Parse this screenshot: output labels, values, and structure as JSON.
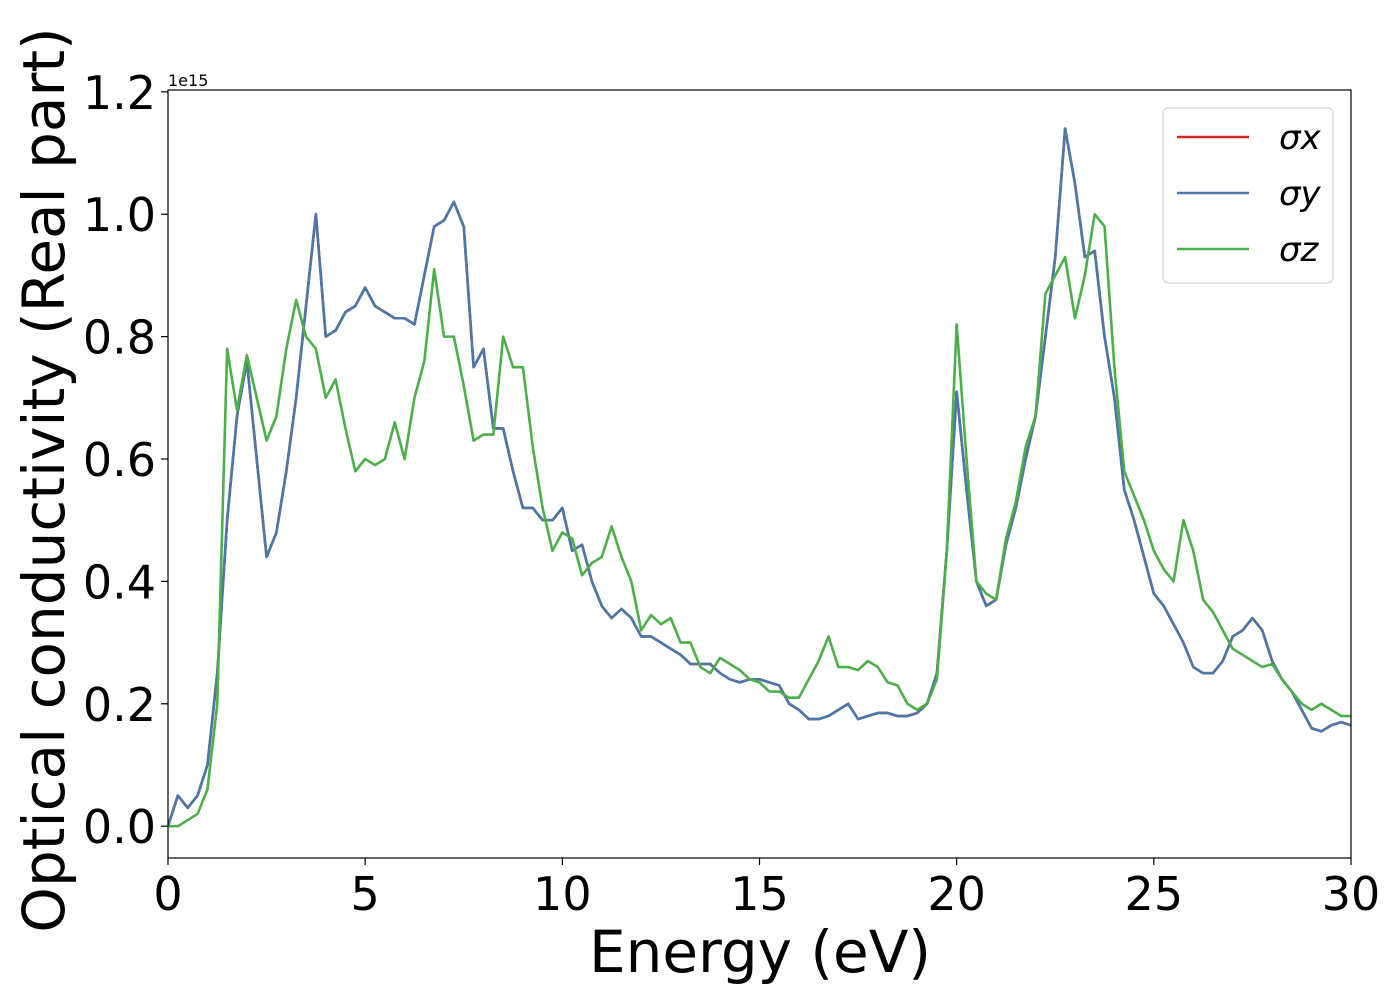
{
  "chart_data": {
    "type": "line",
    "xlabel": "Energy (eV)",
    "ylabel": "Optical conductivity (Real part)",
    "y_offset_text": "1e15",
    "xlim": [
      0,
      30
    ],
    "ylim": [
      -0.052,
      1.203
    ],
    "xticks": [
      0,
      5,
      10,
      15,
      20,
      25,
      30
    ],
    "yticks": [
      {
        "value": 0,
        "label": "0.0"
      },
      0.2,
      0.4,
      0.6,
      0.8,
      {
        "value": 1,
        "label": "1.0"
      },
      1.2
    ],
    "legend": "upper right",
    "x": [
      0,
      0.25,
      0.5,
      0.75,
      1,
      1.25,
      1.5,
      1.75,
      2,
      2.25,
      2.5,
      2.75,
      3,
      3.25,
      3.5,
      3.75,
      4,
      4.25,
      4.5,
      4.75,
      5,
      5.25,
      5.5,
      5.75,
      6,
      6.25,
      6.5,
      6.75,
      7,
      7.25,
      7.5,
      7.75,
      8,
      8.25,
      8.5,
      8.75,
      9,
      9.25,
      9.5,
      9.75,
      10,
      10.25,
      10.5,
      10.75,
      11,
      11.25,
      11.5,
      11.75,
      12,
      12.25,
      12.5,
      12.75,
      13,
      13.25,
      13.5,
      13.75,
      14,
      14.25,
      14.5,
      14.75,
      15,
      15.25,
      15.5,
      15.75,
      16,
      16.25,
      16.5,
      16.75,
      17,
      17.25,
      17.5,
      17.75,
      18,
      18.25,
      18.5,
      18.75,
      19,
      19.25,
      19.5,
      19.75,
      20,
      20.25,
      20.5,
      20.75,
      21,
      21.25,
      21.5,
      21.75,
      22,
      22.25,
      22.5,
      22.75,
      23,
      23.25,
      23.5,
      23.75,
      24,
      24.25,
      24.5,
      24.75,
      25,
      25.25,
      25.5,
      25.75,
      26,
      26.25,
      26.5,
      26.75,
      27,
      27.25,
      27.5,
      27.75,
      28,
      28.25,
      28.5,
      28.75,
      29,
      29.25,
      29.5,
      29.75,
      30
    ],
    "series": [
      {
        "name": "σx",
        "color": "#d62728",
        "values": [
          0,
          0.05,
          0.03,
          0.05,
          0.1,
          0.25,
          0.5,
          0.67,
          0.76,
          0.6,
          0.44,
          0.48,
          0.58,
          0.7,
          0.85,
          1.0,
          0.8,
          0.81,
          0.84,
          0.85,
          0.88,
          0.85,
          0.84,
          0.83,
          0.83,
          0.82,
          0.9,
          0.98,
          0.99,
          1.02,
          0.98,
          0.75,
          0.78,
          0.65,
          0.65,
          0.58,
          0.52,
          0.52,
          0.5,
          0.5,
          0.52,
          0.45,
          0.46,
          0.4,
          0.36,
          0.34,
          0.355,
          0.34,
          0.31,
          0.31,
          0.3,
          0.29,
          0.28,
          0.265,
          0.265,
          0.265,
          0.25,
          0.24,
          0.235,
          0.24,
          0.24,
          0.235,
          0.23,
          0.2,
          0.19,
          0.175,
          0.175,
          0.18,
          0.19,
          0.2,
          0.175,
          0.18,
          0.185,
          0.185,
          0.18,
          0.18,
          0.185,
          0.2,
          0.25,
          0.45,
          0.71,
          0.55,
          0.4,
          0.36,
          0.37,
          0.46,
          0.52,
          0.6,
          0.67,
          0.8,
          0.93,
          1.14,
          1.05,
          0.93,
          0.94,
          0.8,
          0.7,
          0.55,
          0.5,
          0.44,
          0.38,
          0.36,
          0.33,
          0.3,
          0.26,
          0.25,
          0.25,
          0.27,
          0.31,
          0.32,
          0.34,
          0.32,
          0.27,
          0.24,
          0.22,
          0.19,
          0.16,
          0.155,
          0.165,
          0.17,
          0.165
        ]
      },
      {
        "name": "σy",
        "color": "#4a78a8",
        "values": [
          0,
          0.05,
          0.03,
          0.05,
          0.1,
          0.25,
          0.5,
          0.67,
          0.76,
          0.6,
          0.44,
          0.48,
          0.58,
          0.7,
          0.85,
          1.0,
          0.8,
          0.81,
          0.84,
          0.85,
          0.88,
          0.85,
          0.84,
          0.83,
          0.83,
          0.82,
          0.9,
          0.98,
          0.99,
          1.02,
          0.98,
          0.75,
          0.78,
          0.65,
          0.65,
          0.58,
          0.52,
          0.52,
          0.5,
          0.5,
          0.52,
          0.45,
          0.46,
          0.4,
          0.36,
          0.34,
          0.355,
          0.34,
          0.31,
          0.31,
          0.3,
          0.29,
          0.28,
          0.265,
          0.265,
          0.265,
          0.25,
          0.24,
          0.235,
          0.24,
          0.24,
          0.235,
          0.23,
          0.2,
          0.19,
          0.175,
          0.175,
          0.18,
          0.19,
          0.2,
          0.175,
          0.18,
          0.185,
          0.185,
          0.18,
          0.18,
          0.185,
          0.2,
          0.25,
          0.45,
          0.71,
          0.55,
          0.4,
          0.36,
          0.37,
          0.46,
          0.52,
          0.6,
          0.67,
          0.8,
          0.93,
          1.14,
          1.05,
          0.93,
          0.94,
          0.8,
          0.7,
          0.55,
          0.5,
          0.44,
          0.38,
          0.36,
          0.33,
          0.3,
          0.26,
          0.25,
          0.25,
          0.27,
          0.31,
          0.32,
          0.34,
          0.32,
          0.27,
          0.24,
          0.22,
          0.19,
          0.16,
          0.155,
          0.165,
          0.17,
          0.165
        ]
      },
      {
        "name": "σz",
        "color": "#4daf4a",
        "values": [
          0,
          0,
          0.01,
          0.02,
          0.06,
          0.2,
          0.78,
          0.68,
          0.77,
          0.7,
          0.63,
          0.67,
          0.78,
          0.86,
          0.8,
          0.78,
          0.7,
          0.73,
          0.65,
          0.58,
          0.6,
          0.59,
          0.6,
          0.66,
          0.6,
          0.7,
          0.76,
          0.91,
          0.8,
          0.8,
          0.72,
          0.63,
          0.64,
          0.64,
          0.8,
          0.75,
          0.75,
          0.62,
          0.52,
          0.45,
          0.48,
          0.47,
          0.41,
          0.43,
          0.44,
          0.49,
          0.44,
          0.4,
          0.32,
          0.345,
          0.33,
          0.34,
          0.3,
          0.3,
          0.26,
          0.25,
          0.275,
          0.265,
          0.255,
          0.24,
          0.235,
          0.22,
          0.22,
          0.21,
          0.21,
          0.24,
          0.27,
          0.31,
          0.26,
          0.26,
          0.255,
          0.27,
          0.26,
          0.235,
          0.23,
          0.2,
          0.19,
          0.2,
          0.24,
          0.45,
          0.82,
          0.6,
          0.4,
          0.38,
          0.37,
          0.47,
          0.53,
          0.62,
          0.67,
          0.87,
          0.9,
          0.93,
          0.83,
          0.9,
          1.0,
          0.98,
          0.75,
          0.58,
          0.54,
          0.5,
          0.45,
          0.42,
          0.4,
          0.5,
          0.45,
          0.37,
          0.35,
          0.32,
          0.29,
          0.28,
          0.27,
          0.26,
          0.265,
          0.24,
          0.22,
          0.2,
          0.19,
          0.2,
          0.19,
          0.18,
          0.18
        ]
      }
    ]
  }
}
